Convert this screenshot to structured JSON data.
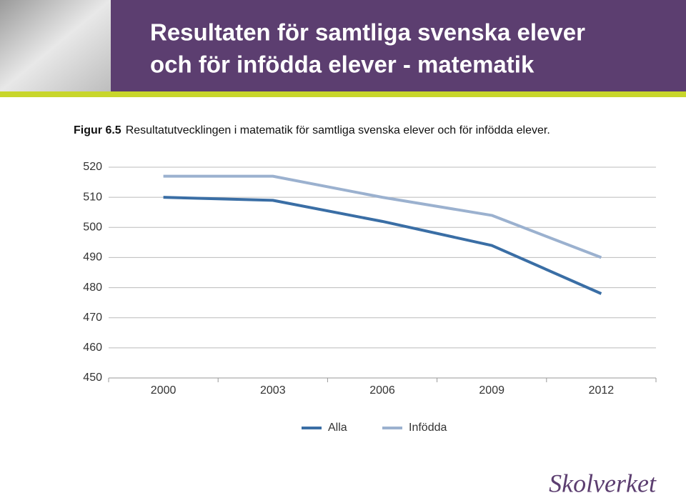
{
  "header": {
    "title": [
      "Resultaten för samtliga svenska elever",
      "och för infödda elever - matematik"
    ]
  },
  "chart_data": {
    "type": "line",
    "figure_label": "Figur 6.5",
    "caption": "Resultatutvecklingen i matematik för samtliga svenska elever och för infödda elever.",
    "categories": [
      "2000",
      "2003",
      "2006",
      "2009",
      "2012"
    ],
    "series": [
      {
        "name": "Alla",
        "color": "#3a6ea5",
        "values": [
          510,
          509,
          502,
          494,
          478
        ]
      },
      {
        "name": "Infödda",
        "color": "#9bb1cf",
        "values": [
          517,
          517,
          510,
          504,
          490
        ]
      }
    ],
    "ylim": [
      450,
      520
    ],
    "yticks": [
      450,
      460,
      470,
      480,
      490,
      500,
      510,
      520
    ],
    "grid": true,
    "legend": "bottom"
  },
  "footer": {
    "logo": "Skolverket"
  }
}
